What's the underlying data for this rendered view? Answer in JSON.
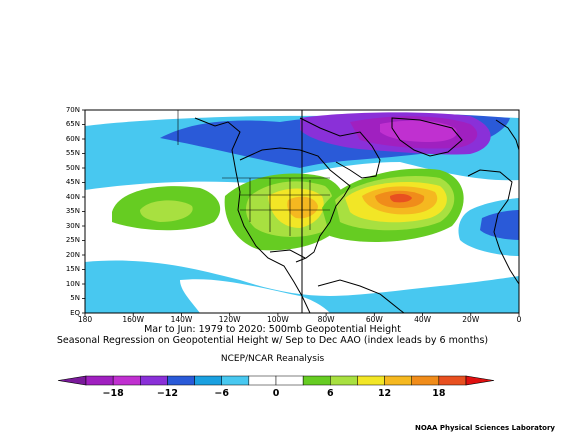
{
  "map": {
    "lat_labels": [
      "70N",
      "65N",
      "60N",
      "55N",
      "50N",
      "45N",
      "40N",
      "35N",
      "30N",
      "25N",
      "20N",
      "15N",
      "10N",
      "5N",
      "EQ"
    ],
    "lon_labels": [
      "180",
      "160W",
      "140W",
      "120W",
      "100W",
      "80W",
      "60W",
      "40W",
      "20W",
      "0"
    ]
  },
  "captions": {
    "line1": "Mar to Jun: 1979 to 2020: 500mb Geopotential Height",
    "line2": "Seasonal Regression on Geopotential Height  w/ Sep to Dec AAO (index leads by 6 months)",
    "line3": "NCEP/NCAR Reanalysis"
  },
  "colorbar": {
    "tick_labels": [
      "−18",
      "−12",
      "−6",
      "0",
      "6",
      "12",
      "18"
    ],
    "colors": [
      "#a020c0",
      "#c030d0",
      "#8a30d8",
      "#2a5ad8",
      "#1aa0e0",
      "#48c8f0",
      "#ffffff",
      "#ffffff",
      "#66cc22",
      "#a8e040",
      "#f2e626",
      "#f5b820",
      "#f08c1a",
      "#e85020"
    ]
  },
  "credit": "NOAA Physical Sciences Laboratory"
}
